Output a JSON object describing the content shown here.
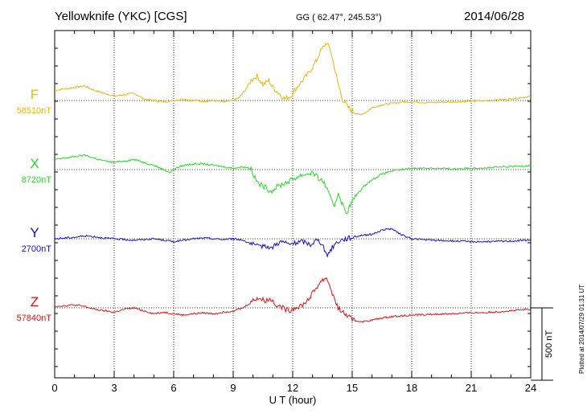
{
  "header": {
    "station": "Yellowknife (YKC)  [CGS]",
    "coords": "GG ( 62.47°, 245.53°)",
    "date": "2014/06/28"
  },
  "plotted_note": "Plotted at 2014/07/29 01:31  UT",
  "chart_data": {
    "type": "line",
    "title": "Yellowknife (YKC)  [CGS]",
    "xlabel": "U T (hour)",
    "ylabel": "",
    "xlim": [
      0,
      24
    ],
    "xticks": [
      0,
      3,
      6,
      9,
      12,
      15,
      18,
      21,
      24
    ],
    "grid": true,
    "scale_bar": "500 nT",
    "scale_nt": 500,
    "series": [
      {
        "name": "F",
        "baseline": "58510nT",
        "color": "#f0b400",
        "points": [
          [
            0,
            58580
          ],
          [
            0.5,
            58590
          ],
          [
            1,
            58600
          ],
          [
            1.5,
            58610
          ],
          [
            2,
            58580
          ],
          [
            2.5,
            58560
          ],
          [
            3,
            58540
          ],
          [
            3.5,
            58550
          ],
          [
            4,
            58560
          ],
          [
            4.5,
            58520
          ],
          [
            5,
            58510
          ],
          [
            5.5,
            58500
          ],
          [
            6,
            58510
          ],
          [
            6.5,
            58520
          ],
          [
            7,
            58510
          ],
          [
            7.5,
            58505
          ],
          [
            8,
            58510
          ],
          [
            8.5,
            58500
          ],
          [
            9,
            58510
          ],
          [
            9.3,
            58530
          ],
          [
            9.6,
            58580
          ],
          [
            9.9,
            58650
          ],
          [
            10.2,
            58680
          ],
          [
            10.5,
            58620
          ],
          [
            10.8,
            58650
          ],
          [
            11,
            58600
          ],
          [
            11.3,
            58560
          ],
          [
            11.6,
            58520
          ],
          [
            11.9,
            58540
          ],
          [
            12.2,
            58600
          ],
          [
            12.5,
            58650
          ],
          [
            12.8,
            58700
          ],
          [
            13.1,
            58760
          ],
          [
            13.4,
            58850
          ],
          [
            13.7,
            58910
          ],
          [
            13.9,
            58860
          ],
          [
            14.1,
            58740
          ],
          [
            14.3,
            58620
          ],
          [
            14.5,
            58520
          ],
          [
            14.8,
            58460
          ],
          [
            15.1,
            58430
          ],
          [
            15.4,
            58410
          ],
          [
            15.7,
            58430
          ],
          [
            16,
            58460
          ],
          [
            16.5,
            58480
          ],
          [
            17,
            58490
          ],
          [
            17.5,
            58500
          ],
          [
            18,
            58500
          ],
          [
            19,
            58495
          ],
          [
            20,
            58500
          ],
          [
            21,
            58505
          ],
          [
            22,
            58510
          ],
          [
            23,
            58520
          ],
          [
            24,
            58540
          ]
        ]
      },
      {
        "name": "X",
        "baseline": "8720nT",
        "color": "#20dd20",
        "points": [
          [
            0,
            8790
          ],
          [
            0.5,
            8800
          ],
          [
            1,
            8810
          ],
          [
            1.5,
            8820
          ],
          [
            2,
            8800
          ],
          [
            2.5,
            8780
          ],
          [
            3,
            8770
          ],
          [
            3.5,
            8780
          ],
          [
            4,
            8790
          ],
          [
            4.5,
            8770
          ],
          [
            5,
            8750
          ],
          [
            5.5,
            8720
          ],
          [
            5.8,
            8700
          ],
          [
            6.1,
            8730
          ],
          [
            6.5,
            8750
          ],
          [
            7,
            8760
          ],
          [
            7.5,
            8760
          ],
          [
            8,
            8750
          ],
          [
            8.5,
            8740
          ],
          [
            9,
            8730
          ],
          [
            9.5,
            8740
          ],
          [
            9.9,
            8730
          ],
          [
            10.1,
            8660
          ],
          [
            10.3,
            8620
          ],
          [
            10.6,
            8600
          ],
          [
            10.9,
            8570
          ],
          [
            11.2,
            8600
          ],
          [
            11.5,
            8620
          ],
          [
            11.8,
            8640
          ],
          [
            12.1,
            8660
          ],
          [
            12.4,
            8680
          ],
          [
            12.7,
            8690
          ],
          [
            13,
            8700
          ],
          [
            13.3,
            8660
          ],
          [
            13.6,
            8630
          ],
          [
            13.9,
            8520
          ],
          [
            14.1,
            8470
          ],
          [
            14.3,
            8560
          ],
          [
            14.5,
            8480
          ],
          [
            14.7,
            8420
          ],
          [
            15,
            8500
          ],
          [
            15.3,
            8560
          ],
          [
            15.7,
            8620
          ],
          [
            16,
            8650
          ],
          [
            16.5,
            8690
          ],
          [
            17,
            8710
          ],
          [
            17.5,
            8720
          ],
          [
            18,
            8730
          ],
          [
            19,
            8730
          ],
          [
            20,
            8725
          ],
          [
            21,
            8730
          ],
          [
            22,
            8735
          ],
          [
            23,
            8740
          ],
          [
            24,
            8750
          ]
        ]
      },
      {
        "name": "Y",
        "baseline": "2700nT",
        "color": "#1010cc",
        "points": [
          [
            0,
            2700
          ],
          [
            0.5,
            2705
          ],
          [
            1,
            2710
          ],
          [
            1.5,
            2720
          ],
          [
            2,
            2715
          ],
          [
            2.5,
            2705
          ],
          [
            3,
            2700
          ],
          [
            3.5,
            2695
          ],
          [
            4,
            2690
          ],
          [
            4.5,
            2695
          ],
          [
            5,
            2700
          ],
          [
            5.5,
            2690
          ],
          [
            6,
            2680
          ],
          [
            6.5,
            2690
          ],
          [
            7,
            2700
          ],
          [
            7.5,
            2705
          ],
          [
            8,
            2700
          ],
          [
            8.5,
            2695
          ],
          [
            9,
            2700
          ],
          [
            9.5,
            2690
          ],
          [
            10,
            2660
          ],
          [
            10.3,
            2640
          ],
          [
            10.6,
            2660
          ],
          [
            10.9,
            2630
          ],
          [
            11.2,
            2670
          ],
          [
            11.5,
            2680
          ],
          [
            11.8,
            2660
          ],
          [
            12.1,
            2670
          ],
          [
            12.5,
            2680
          ],
          [
            12.9,
            2660
          ],
          [
            13.2,
            2690
          ],
          [
            13.5,
            2670
          ],
          [
            13.7,
            2580
          ],
          [
            13.9,
            2620
          ],
          [
            14.1,
            2660
          ],
          [
            14.4,
            2690
          ],
          [
            14.7,
            2700
          ],
          [
            15,
            2710
          ],
          [
            15.5,
            2725
          ],
          [
            16,
            2730
          ],
          [
            16.5,
            2760
          ],
          [
            17,
            2770
          ],
          [
            17.3,
            2740
          ],
          [
            17.7,
            2715
          ],
          [
            18,
            2700
          ],
          [
            19,
            2690
          ],
          [
            20,
            2685
          ],
          [
            21,
            2680
          ],
          [
            22,
            2680
          ],
          [
            23,
            2685
          ],
          [
            24,
            2690
          ]
        ]
      },
      {
        "name": "Z",
        "baseline": "57840nT",
        "color": "#e01010",
        "points": [
          [
            0,
            57850
          ],
          [
            0.5,
            57855
          ],
          [
            1,
            57860
          ],
          [
            1.5,
            57850
          ],
          [
            2,
            57830
          ],
          [
            2.5,
            57820
          ],
          [
            3,
            57810
          ],
          [
            3.5,
            57830
          ],
          [
            4,
            57840
          ],
          [
            4.5,
            57820
          ],
          [
            5,
            57800
          ],
          [
            5.5,
            57810
          ],
          [
            6,
            57800
          ],
          [
            6.5,
            57790
          ],
          [
            7,
            57800
          ],
          [
            7.5,
            57805
          ],
          [
            8,
            57800
          ],
          [
            8.5,
            57810
          ],
          [
            9,
            57820
          ],
          [
            9.5,
            57840
          ],
          [
            9.9,
            57880
          ],
          [
            10.2,
            57910
          ],
          [
            10.6,
            57890
          ],
          [
            10.9,
            57900
          ],
          [
            11.2,
            57860
          ],
          [
            11.5,
            57840
          ],
          [
            11.8,
            57820
          ],
          [
            12.1,
            57840
          ],
          [
            12.5,
            57860
          ],
          [
            12.8,
            57900
          ],
          [
            13.1,
            57960
          ],
          [
            13.4,
            58020
          ],
          [
            13.7,
            58050
          ],
          [
            13.9,
            57980
          ],
          [
            14.1,
            57900
          ],
          [
            14.3,
            57840
          ],
          [
            14.6,
            57800
          ],
          [
            14.9,
            57770
          ],
          [
            15.2,
            57750
          ],
          [
            15.6,
            57745
          ],
          [
            16,
            57755
          ],
          [
            16.5,
            57770
          ],
          [
            17,
            57780
          ],
          [
            18,
            57790
          ],
          [
            19,
            57795
          ],
          [
            20,
            57800
          ],
          [
            21,
            57805
          ],
          [
            22,
            57810
          ],
          [
            23,
            57820
          ],
          [
            24,
            57830
          ]
        ]
      }
    ]
  }
}
